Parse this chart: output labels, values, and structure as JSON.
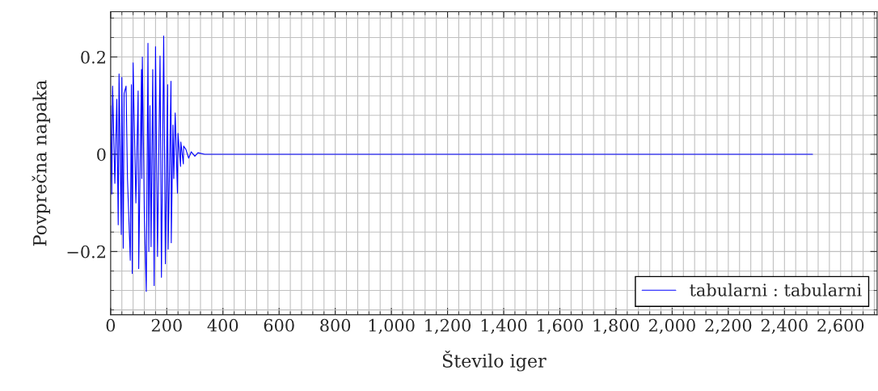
{
  "chart_data": {
    "type": "line",
    "xlabel": "Število iger",
    "ylabel": "Povprečna napaka",
    "xlim": [
      0,
      2730
    ],
    "ylim": [
      -0.33,
      0.293
    ],
    "xticks": [
      0,
      200,
      400,
      600,
      800,
      {
        "value": 1000,
        "label": "1,000"
      },
      {
        "value": 1200,
        "label": "1,200"
      },
      {
        "value": 1400,
        "label": "1,400"
      },
      {
        "value": 1600,
        "label": "1,600"
      },
      {
        "value": 1800,
        "label": "1,800"
      },
      {
        "value": 2000,
        "label": "2,000"
      },
      {
        "value": 2200,
        "label": "2,200"
      },
      {
        "value": 2400,
        "label": "2,400"
      },
      {
        "value": 2600,
        "label": "2,600"
      }
    ],
    "yticks": [
      {
        "value": -0.2,
        "label": "−0.2"
      },
      0,
      0.2
    ],
    "grid": true,
    "legend": "lower right",
    "marker": "none",
    "line_style": "solid",
    "series": [
      {
        "name": "tabularni : tabularni",
        "color": "#0000ff",
        "x": [
          0,
          4,
          7,
          15,
          22,
          27,
          30,
          38,
          40,
          45,
          48,
          55,
          60,
          70,
          74,
          77,
          80,
          90,
          98,
          100,
          110,
          111,
          113,
          120,
          127,
          133,
          136,
          140,
          144,
          150,
          155,
          160,
          167,
          176,
          181,
          189,
          195,
          203,
          205,
          215,
          216,
          222,
          225,
          230,
          238,
          240,
          249,
          250,
          259,
          260,
          268,
          278,
          287,
          300,
          311,
          335,
          2500
        ],
        "values": [
          0.1,
          -0.082,
          0.14,
          -0.06,
          0.113,
          -0.145,
          0.165,
          -0.165,
          0.158,
          -0.193,
          0.125,
          0.14,
          -0.05,
          -0.218,
          0.143,
          -0.245,
          0.188,
          -0.1,
          0.13,
          -0.235,
          0.174,
          -0.05,
          0.2,
          -0.12,
          -0.282,
          0.228,
          -0.2,
          0.1,
          -0.19,
          0.174,
          -0.27,
          0.221,
          -0.21,
          0.202,
          -0.253,
          0.243,
          -0.225,
          0.143,
          -0.195,
          0.15,
          -0.182,
          0.06,
          -0.05,
          0.085,
          -0.08,
          0.043,
          -0.025,
          0.025,
          -0.02,
          0.017,
          0.01,
          -0.008,
          0.005,
          -0.004,
          0.003,
          0,
          0
        ]
      }
    ]
  }
}
